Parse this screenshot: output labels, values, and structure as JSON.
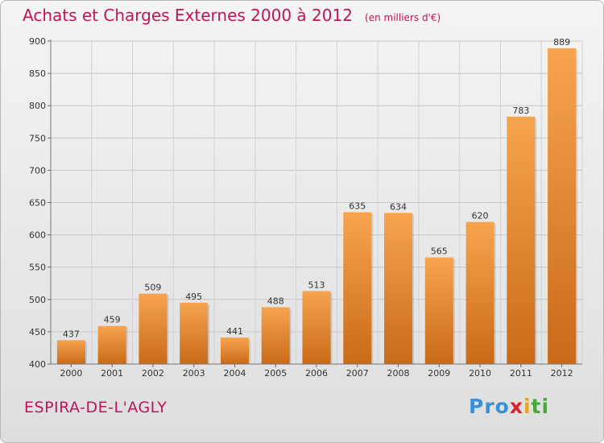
{
  "chart_data": {
    "type": "bar",
    "title": "Achats et Charges Externes 2000 à 2012",
    "subtitle": "(en milliers d'€)",
    "categories": [
      "2000",
      "2001",
      "2002",
      "2003",
      "2004",
      "2005",
      "2006",
      "2007",
      "2008",
      "2009",
      "2010",
      "2011",
      "2012"
    ],
    "values": [
      437,
      459,
      509,
      495,
      441,
      488,
      513,
      635,
      634,
      565,
      620,
      783,
      889
    ],
    "ylim": [
      400,
      900
    ],
    "yticks": [
      400,
      450,
      500,
      550,
      600,
      650,
      700,
      750,
      800,
      850,
      900
    ],
    "grid": true,
    "bar_color_light": "#f7a44f",
    "bar_color_dark": "#c96a17"
  },
  "footer": {
    "commune": "ESPIRA-DE-L'AGLY",
    "brand_parts": [
      "Pro",
      "x",
      "i",
      "ti"
    ]
  }
}
